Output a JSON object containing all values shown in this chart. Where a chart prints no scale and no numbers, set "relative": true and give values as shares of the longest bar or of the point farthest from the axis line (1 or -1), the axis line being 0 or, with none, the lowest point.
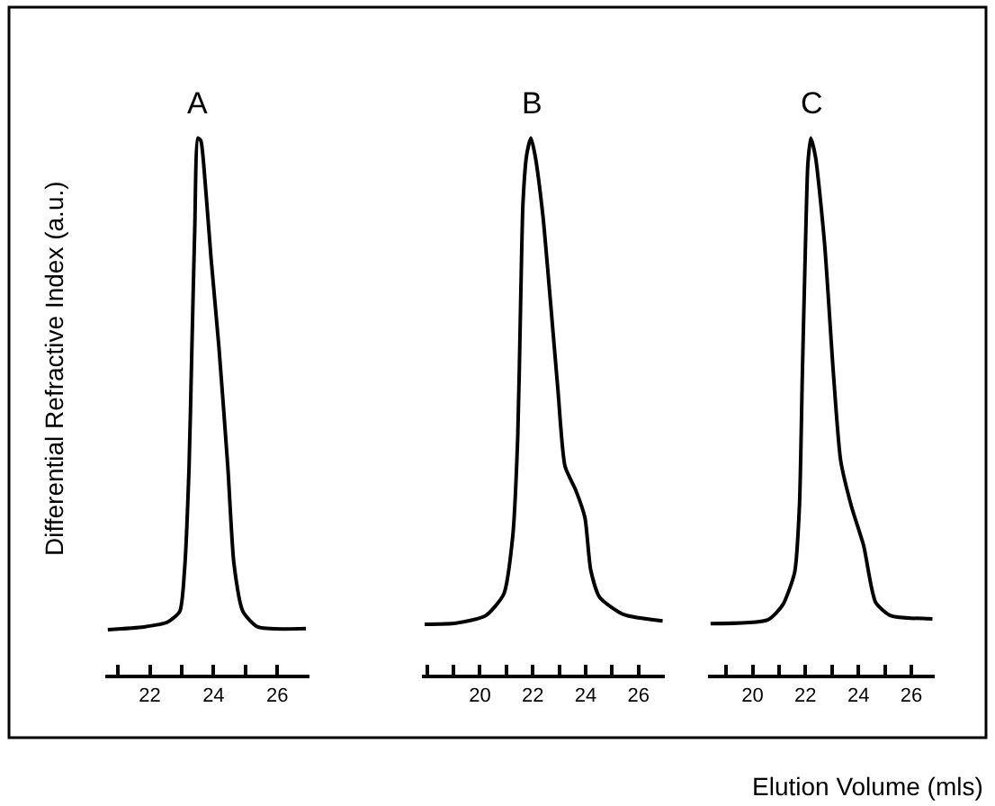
{
  "chart_data": [
    {
      "type": "line",
      "title": "A",
      "ylabel": "Differential Refractive Index (a.u.)",
      "relative": true,
      "color": "#000000",
      "line_style": "solid",
      "xlim": [
        20.6,
        27.0
      ],
      "xticks": [
        22,
        24,
        26
      ],
      "x": [
        20.68,
        21.81,
        22.56,
        22.94,
        23.09,
        23.23,
        23.32,
        23.41,
        23.51,
        23.6,
        23.73,
        23.92,
        24.17,
        24.45,
        24.64,
        24.92,
        25.39,
        26.9
      ],
      "values": [
        0.084,
        0.089,
        0.098,
        0.118,
        0.196,
        0.385,
        0.609,
        0.832,
        1.0,
        0.995,
        0.922,
        0.777,
        0.609,
        0.385,
        0.207,
        0.118,
        0.089,
        0.086
      ]
    },
    {
      "type": "line",
      "title": "B",
      "relative": true,
      "color": "#000000",
      "line_style": "solid",
      "xlim": [
        17.8,
        27.0
      ],
      "xticks": [
        20,
        22,
        24,
        26
      ],
      "x": [
        17.91,
        19.09,
        20.22,
        20.9,
        21.24,
        21.43,
        21.54,
        21.63,
        21.77,
        21.93,
        22.08,
        22.38,
        22.67,
        22.95,
        23.22,
        23.63,
        23.97,
        24.19,
        24.53,
        25.44,
        26.91
      ],
      "values": [
        0.094,
        0.096,
        0.11,
        0.15,
        0.257,
        0.443,
        0.694,
        0.88,
        0.969,
        1.0,
        0.969,
        0.856,
        0.694,
        0.531,
        0.388,
        0.343,
        0.293,
        0.195,
        0.144,
        0.112,
        0.1
      ]
    },
    {
      "type": "line",
      "title": "C",
      "xlabel": "Elution Volume (mls)",
      "relative": true,
      "color": "#000000",
      "line_style": "solid",
      "xlim": [
        18.3,
        26.9
      ],
      "xticks": [
        20,
        22,
        24,
        26
      ],
      "x": [
        18.41,
        20.57,
        21.14,
        21.59,
        21.77,
        21.88,
        22.0,
        22.09,
        22.2,
        22.38,
        22.72,
        23.06,
        23.33,
        23.74,
        24.2,
        24.65,
        25.22,
        26.8
      ],
      "values": [
        0.095,
        0.102,
        0.13,
        0.191,
        0.313,
        0.558,
        0.804,
        0.952,
        1.0,
        0.964,
        0.804,
        0.558,
        0.399,
        0.313,
        0.24,
        0.135,
        0.11,
        0.104
      ]
    }
  ]
}
